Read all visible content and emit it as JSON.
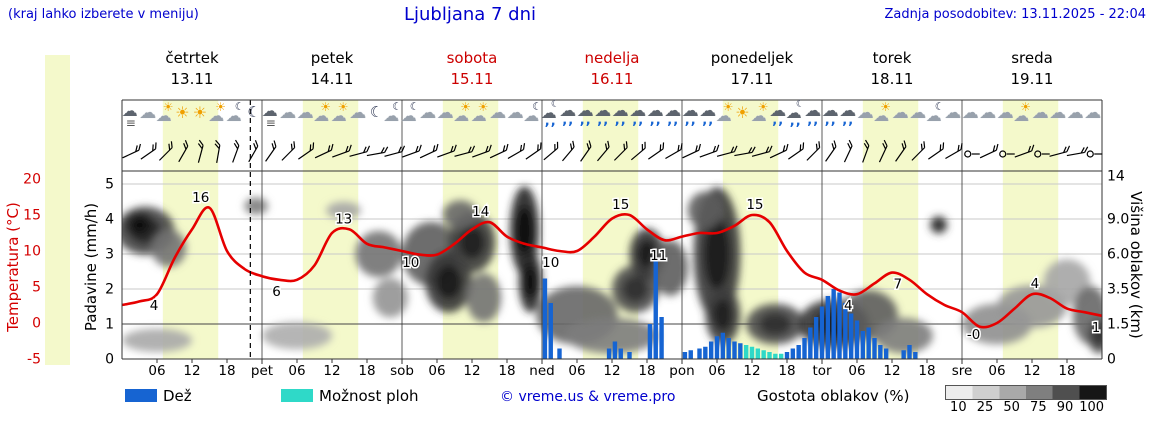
{
  "header": {
    "hint": "(kraj lahko izberete v meniju)",
    "title": "Ljubljana 7 dni",
    "updated": "Zadnja posodobitev: 13.11.2025 - 22:04"
  },
  "days": [
    {
      "name": "četrtek",
      "date": "13.11",
      "highlight": false
    },
    {
      "name": "petek",
      "date": "14.11",
      "highlight": false
    },
    {
      "name": "sobota",
      "date": "15.11",
      "highlight": true
    },
    {
      "name": "nedelja",
      "date": "16.11",
      "highlight": true
    },
    {
      "name": "ponedeljek",
      "date": "17.11",
      "highlight": false
    },
    {
      "name": "torek",
      "date": "18.11",
      "highlight": false
    },
    {
      "name": "sreda",
      "date": "19.11",
      "highlight": false
    }
  ],
  "axes": {
    "temp_label": "Temperatura (°C)",
    "temp_ticks": [
      "20",
      "15",
      "10",
      "5",
      "0",
      "-5"
    ],
    "precip_label": "Padavine (mm/h)",
    "precip_ticks": [
      "5",
      "4",
      "3",
      "2",
      "1",
      "0"
    ],
    "cloud_label": "Višina oblakov (km)",
    "cloud_ticks": [
      "14",
      "9.0",
      "6.0",
      "3.5",
      "1.5",
      "0"
    ],
    "time_ticks": [
      "06",
      "12",
      "18"
    ],
    "day_abbrevs": [
      "pet",
      "sob",
      "ned",
      "pon",
      "tor",
      "sre"
    ]
  },
  "legend": {
    "rain": "Dež",
    "showers": "Možnost ploh",
    "copyright": "© vreme.us & vreme.pro",
    "cloud_density": "Gostota oblakov (%)",
    "density_ticks": [
      "10",
      "25",
      "50",
      "75",
      "90",
      "100"
    ]
  },
  "colors": {
    "accent_blue": "#0000cd",
    "temp_red": "#e60000",
    "rain_blue": "#1664d2",
    "shower_cyan": "#2fd9c8",
    "day_band": "#f4f9cb"
  },
  "now_marker": {
    "t": 22
  },
  "icon_row": [
    [
      "fog",
      "cloud",
      "sun-cloud",
      "sun",
      "sun",
      "sun-cloud",
      "moon-cloud",
      "moon"
    ],
    [
      "fog",
      "cloud",
      "cloud",
      "sun-cloud",
      "sun-cloud",
      "cloud",
      "moon",
      "moon-cloud"
    ],
    [
      "moon-cloud",
      "cloud",
      "cloud",
      "sun-cloud",
      "sun-cloud",
      "cloud",
      "cloud",
      "moon-cloud"
    ],
    [
      "rain-moon",
      "rain",
      "rain",
      "rain",
      "rain",
      "rain",
      "rain",
      "rain"
    ],
    [
      "rain",
      "rain",
      "sun-cloud",
      "sun",
      "sun-cloud",
      "rain",
      "rain-moon",
      "rain"
    ],
    [
      "rain",
      "rain",
      "cloud",
      "sun-cloud",
      "cloud",
      "cloud",
      "moon-cloud",
      "cloud"
    ],
    [
      "cloud",
      "cloud",
      "cloud",
      "sun-cloud",
      "cloud",
      "cloud",
      "cloud",
      "cloud"
    ]
  ],
  "wind_row": [
    [
      [
        25,
        0
      ],
      [
        35,
        0
      ],
      [
        45,
        0
      ],
      [
        60,
        0
      ],
      [
        75,
        0
      ],
      [
        80,
        0
      ],
      [
        70,
        0
      ],
      [
        60,
        0
      ]
    ],
    [
      [
        55,
        0
      ],
      [
        45,
        0
      ],
      [
        35,
        0
      ],
      [
        25,
        0
      ],
      [
        20,
        0
      ],
      [
        15,
        0
      ],
      [
        10,
        0
      ],
      [
        15,
        0
      ]
    ],
    [
      [
        20,
        0
      ],
      [
        25,
        0
      ],
      [
        20,
        0
      ],
      [
        15,
        0
      ],
      [
        20,
        0
      ],
      [
        25,
        0
      ],
      [
        30,
        0
      ],
      [
        35,
        0
      ]
    ],
    [
      [
        40,
        0
      ],
      [
        50,
        0
      ],
      [
        55,
        0
      ],
      [
        50,
        0
      ],
      [
        45,
        0
      ],
      [
        40,
        0
      ],
      [
        35,
        0
      ],
      [
        30,
        0
      ]
    ],
    [
      [
        25,
        0
      ],
      [
        20,
        0
      ],
      [
        15,
        0
      ],
      [
        10,
        0
      ],
      [
        15,
        0
      ],
      [
        25,
        0
      ],
      [
        35,
        0
      ],
      [
        45,
        0
      ]
    ],
    [
      [
        55,
        0
      ],
      [
        65,
        0
      ],
      [
        70,
        0
      ],
      [
        65,
        0
      ],
      [
        55,
        0
      ],
      [
        45,
        0
      ],
      [
        35,
        0
      ],
      [
        30,
        0
      ]
    ],
    [
      [
        0,
        1
      ],
      [
        25,
        0
      ],
      [
        0,
        1
      ],
      [
        20,
        0
      ],
      [
        0,
        1
      ],
      [
        15,
        0
      ],
      [
        10,
        0
      ],
      [
        0,
        1
      ]
    ]
  ],
  "chart_data": [
    {
      "type": "line",
      "name": "Temperatura (°C)",
      "x_unit": "hours from 13.11 00:00",
      "step_h": 3,
      "ylim": [
        -5,
        20
      ],
      "values": [
        2.5,
        3,
        4,
        9,
        13,
        16,
        10,
        7.5,
        6.5,
        6,
        6,
        8,
        12.5,
        13,
        11,
        10.5,
        10,
        9.5,
        9.5,
        11,
        13,
        14,
        12,
        11,
        10.5,
        10,
        10,
        12,
        14.5,
        15,
        13,
        11.5,
        12,
        12.5,
        12.5,
        13.5,
        15,
        14,
        10,
        7,
        6,
        4.5,
        4,
        5.5,
        7,
        6,
        4,
        2.5,
        1.5,
        -0.5,
        0,
        2,
        4,
        3.5,
        2,
        1.5,
        1
      ],
      "labels": [
        {
          "t": 5.5,
          "v": "4",
          "p": "b"
        },
        {
          "t": 13.5,
          "v": "16",
          "p": "a"
        },
        {
          "t": 26.5,
          "v": "6",
          "p": "b"
        },
        {
          "t": 38,
          "v": "13",
          "p": "a"
        },
        {
          "t": 49.5,
          "v": "10",
          "p": "b"
        },
        {
          "t": 61.5,
          "v": "14",
          "p": "a"
        },
        {
          "t": 73.5,
          "v": "10",
          "p": "b"
        },
        {
          "t": 85.5,
          "v": "15",
          "p": "a"
        },
        {
          "t": 92,
          "v": "11",
          "p": "b"
        },
        {
          "t": 108.5,
          "v": "15",
          "p": "a"
        },
        {
          "t": 124.5,
          "v": "4",
          "p": "b"
        },
        {
          "t": 133,
          "v": "7",
          "p": "b"
        },
        {
          "t": 146,
          "v": "-0",
          "p": "b"
        },
        {
          "t": 156.5,
          "v": "4",
          "p": "a"
        },
        {
          "t": 167,
          "v": "1",
          "p": "b"
        }
      ]
    },
    {
      "type": "bar",
      "name": "Dež",
      "unit": "mm/h",
      "ylim": [
        0,
        5
      ],
      "bars": [
        {
          "t": 72.5,
          "v": 2.3
        },
        {
          "t": 73.5,
          "v": 1.6
        },
        {
          "t": 75,
          "v": 0.3
        },
        {
          "t": 83.5,
          "v": 0.3
        },
        {
          "t": 84.5,
          "v": 0.5
        },
        {
          "t": 85.5,
          "v": 0.3
        },
        {
          "t": 87,
          "v": 0.2
        },
        {
          "t": 90.5,
          "v": 1.0
        },
        {
          "t": 91.5,
          "v": 2.8
        },
        {
          "t": 92.5,
          "v": 1.2
        },
        {
          "t": 96.5,
          "v": 0.2
        },
        {
          "t": 97.5,
          "v": 0.25
        },
        {
          "t": 99,
          "v": 0.3
        },
        {
          "t": 100,
          "v": 0.35
        },
        {
          "t": 101,
          "v": 0.5
        },
        {
          "t": 102,
          "v": 0.65
        },
        {
          "t": 103,
          "v": 0.75
        },
        {
          "t": 104,
          "v": 0.6
        },
        {
          "t": 105,
          "v": 0.5
        },
        {
          "t": 106,
          "v": 0.45
        },
        {
          "t": 114,
          "v": 0.2
        },
        {
          "t": 115,
          "v": 0.3
        },
        {
          "t": 116,
          "v": 0.4
        },
        {
          "t": 117,
          "v": 0.6
        },
        {
          "t": 118,
          "v": 0.9
        },
        {
          "t": 119,
          "v": 1.2
        },
        {
          "t": 120,
          "v": 1.5
        },
        {
          "t": 121,
          "v": 1.8
        },
        {
          "t": 122,
          "v": 2.0
        },
        {
          "t": 123,
          "v": 1.9
        },
        {
          "t": 124,
          "v": 1.6
        },
        {
          "t": 125,
          "v": 1.3
        },
        {
          "t": 126,
          "v": 1.1
        },
        {
          "t": 127,
          "v": 0.8
        },
        {
          "t": 128,
          "v": 0.9
        },
        {
          "t": 129,
          "v": 0.6
        },
        {
          "t": 130,
          "v": 0.4
        },
        {
          "t": 131,
          "v": 0.3
        },
        {
          "t": 134,
          "v": 0.25
        },
        {
          "t": 135,
          "v": 0.4
        },
        {
          "t": 136,
          "v": 0.2
        }
      ]
    },
    {
      "type": "bar",
      "name": "Možnost ploh",
      "unit": "mm/h",
      "ylim": [
        0,
        5
      ],
      "bars": [
        {
          "t": 107,
          "v": 0.4
        },
        {
          "t": 108,
          "v": 0.35
        },
        {
          "t": 109,
          "v": 0.3
        },
        {
          "t": 110,
          "v": 0.25
        },
        {
          "t": 111,
          "v": 0.2
        },
        {
          "t": 112,
          "v": 0.15
        },
        {
          "t": 113,
          "v": 0.15
        }
      ]
    },
    {
      "type": "heatmap",
      "name": "Gostota oblakov (%)",
      "y_unit": "km",
      "ylim": [
        0,
        14
      ],
      "blobs": [
        {
          "t": 4,
          "km": 8,
          "rt": 5,
          "rkm": 2.2,
          "d": 75
        },
        {
          "t": 3,
          "km": 8.5,
          "rt": 2.5,
          "rkm": 1.2,
          "d": 92
        },
        {
          "t": 8,
          "km": 6.5,
          "rt": 3,
          "rkm": 1.5,
          "d": 55
        },
        {
          "t": 6,
          "km": 0.8,
          "rt": 6,
          "rkm": 0.5,
          "d": 30
        },
        {
          "t": 23,
          "km": 10.5,
          "rt": 2,
          "rkm": 1,
          "d": 50
        },
        {
          "t": 30,
          "km": 1,
          "rt": 6,
          "rkm": 0.6,
          "d": 28
        },
        {
          "t": 38,
          "km": 10,
          "rt": 3,
          "rkm": 1,
          "d": 32
        },
        {
          "t": 44,
          "km": 6,
          "rt": 4,
          "rkm": 1.8,
          "d": 55
        },
        {
          "t": 46,
          "km": 3,
          "rt": 3,
          "rkm": 1.2,
          "d": 40
        },
        {
          "t": 53,
          "km": 6,
          "rt": 5,
          "rkm": 2.5,
          "d": 65
        },
        {
          "t": 56,
          "km": 4,
          "rt": 4,
          "rkm": 2,
          "d": 82
        },
        {
          "t": 60,
          "km": 7,
          "rt": 4,
          "rkm": 2.5,
          "d": 78
        },
        {
          "t": 62,
          "km": 3,
          "rt": 3,
          "rkm": 1.5,
          "d": 55
        },
        {
          "t": 58,
          "km": 9.5,
          "rt": 3,
          "rkm": 1.5,
          "d": 60
        },
        {
          "t": 69,
          "km": 8,
          "rt": 2.5,
          "rkm": 4,
          "d": 92
        },
        {
          "t": 70,
          "km": 4,
          "rt": 2,
          "rkm": 2,
          "d": 88
        },
        {
          "t": 78,
          "km": 2,
          "rt": 7,
          "rkm": 1.5,
          "d": 60
        },
        {
          "t": 84,
          "km": 1,
          "rt": 8,
          "rkm": 0.8,
          "d": 50
        },
        {
          "t": 88,
          "km": 3.5,
          "rt": 4,
          "rkm": 1.5,
          "d": 72
        },
        {
          "t": 90,
          "km": 6,
          "rt": 3,
          "rkm": 2,
          "d": 82
        },
        {
          "t": 94,
          "km": 5,
          "rt": 3,
          "rkm": 2,
          "d": 65
        },
        {
          "t": 102,
          "km": 6,
          "rt": 4,
          "rkm": 5,
          "d": 82
        },
        {
          "t": 103,
          "km": 2,
          "rt": 3,
          "rkm": 1.5,
          "d": 78
        },
        {
          "t": 100,
          "km": 10,
          "rt": 3,
          "rkm": 2,
          "d": 65
        },
        {
          "t": 112,
          "km": 1.5,
          "rt": 5,
          "rkm": 1,
          "d": 72
        },
        {
          "t": 122,
          "km": 1.5,
          "rt": 6,
          "rkm": 1.2,
          "d": 82
        },
        {
          "t": 128,
          "km": 2,
          "rt": 5,
          "rkm": 1.3,
          "d": 65
        },
        {
          "t": 134,
          "km": 1,
          "rt": 5,
          "rkm": 0.8,
          "d": 50
        },
        {
          "t": 140,
          "km": 8.5,
          "rt": 1.5,
          "rkm": 0.8,
          "d": 78
        },
        {
          "t": 150,
          "km": 1.5,
          "rt": 6,
          "rkm": 1,
          "d": 42
        },
        {
          "t": 156,
          "km": 2.5,
          "rt": 6,
          "rkm": 1.2,
          "d": 38
        },
        {
          "t": 162,
          "km": 4,
          "rt": 4,
          "rkm": 1.5,
          "d": 32
        },
        {
          "t": 166,
          "km": 2,
          "rt": 3,
          "rkm": 1.5,
          "d": 60
        },
        {
          "t": 167.5,
          "km": 1,
          "rt": 2,
          "rkm": 0.8,
          "d": 72
        }
      ]
    }
  ]
}
